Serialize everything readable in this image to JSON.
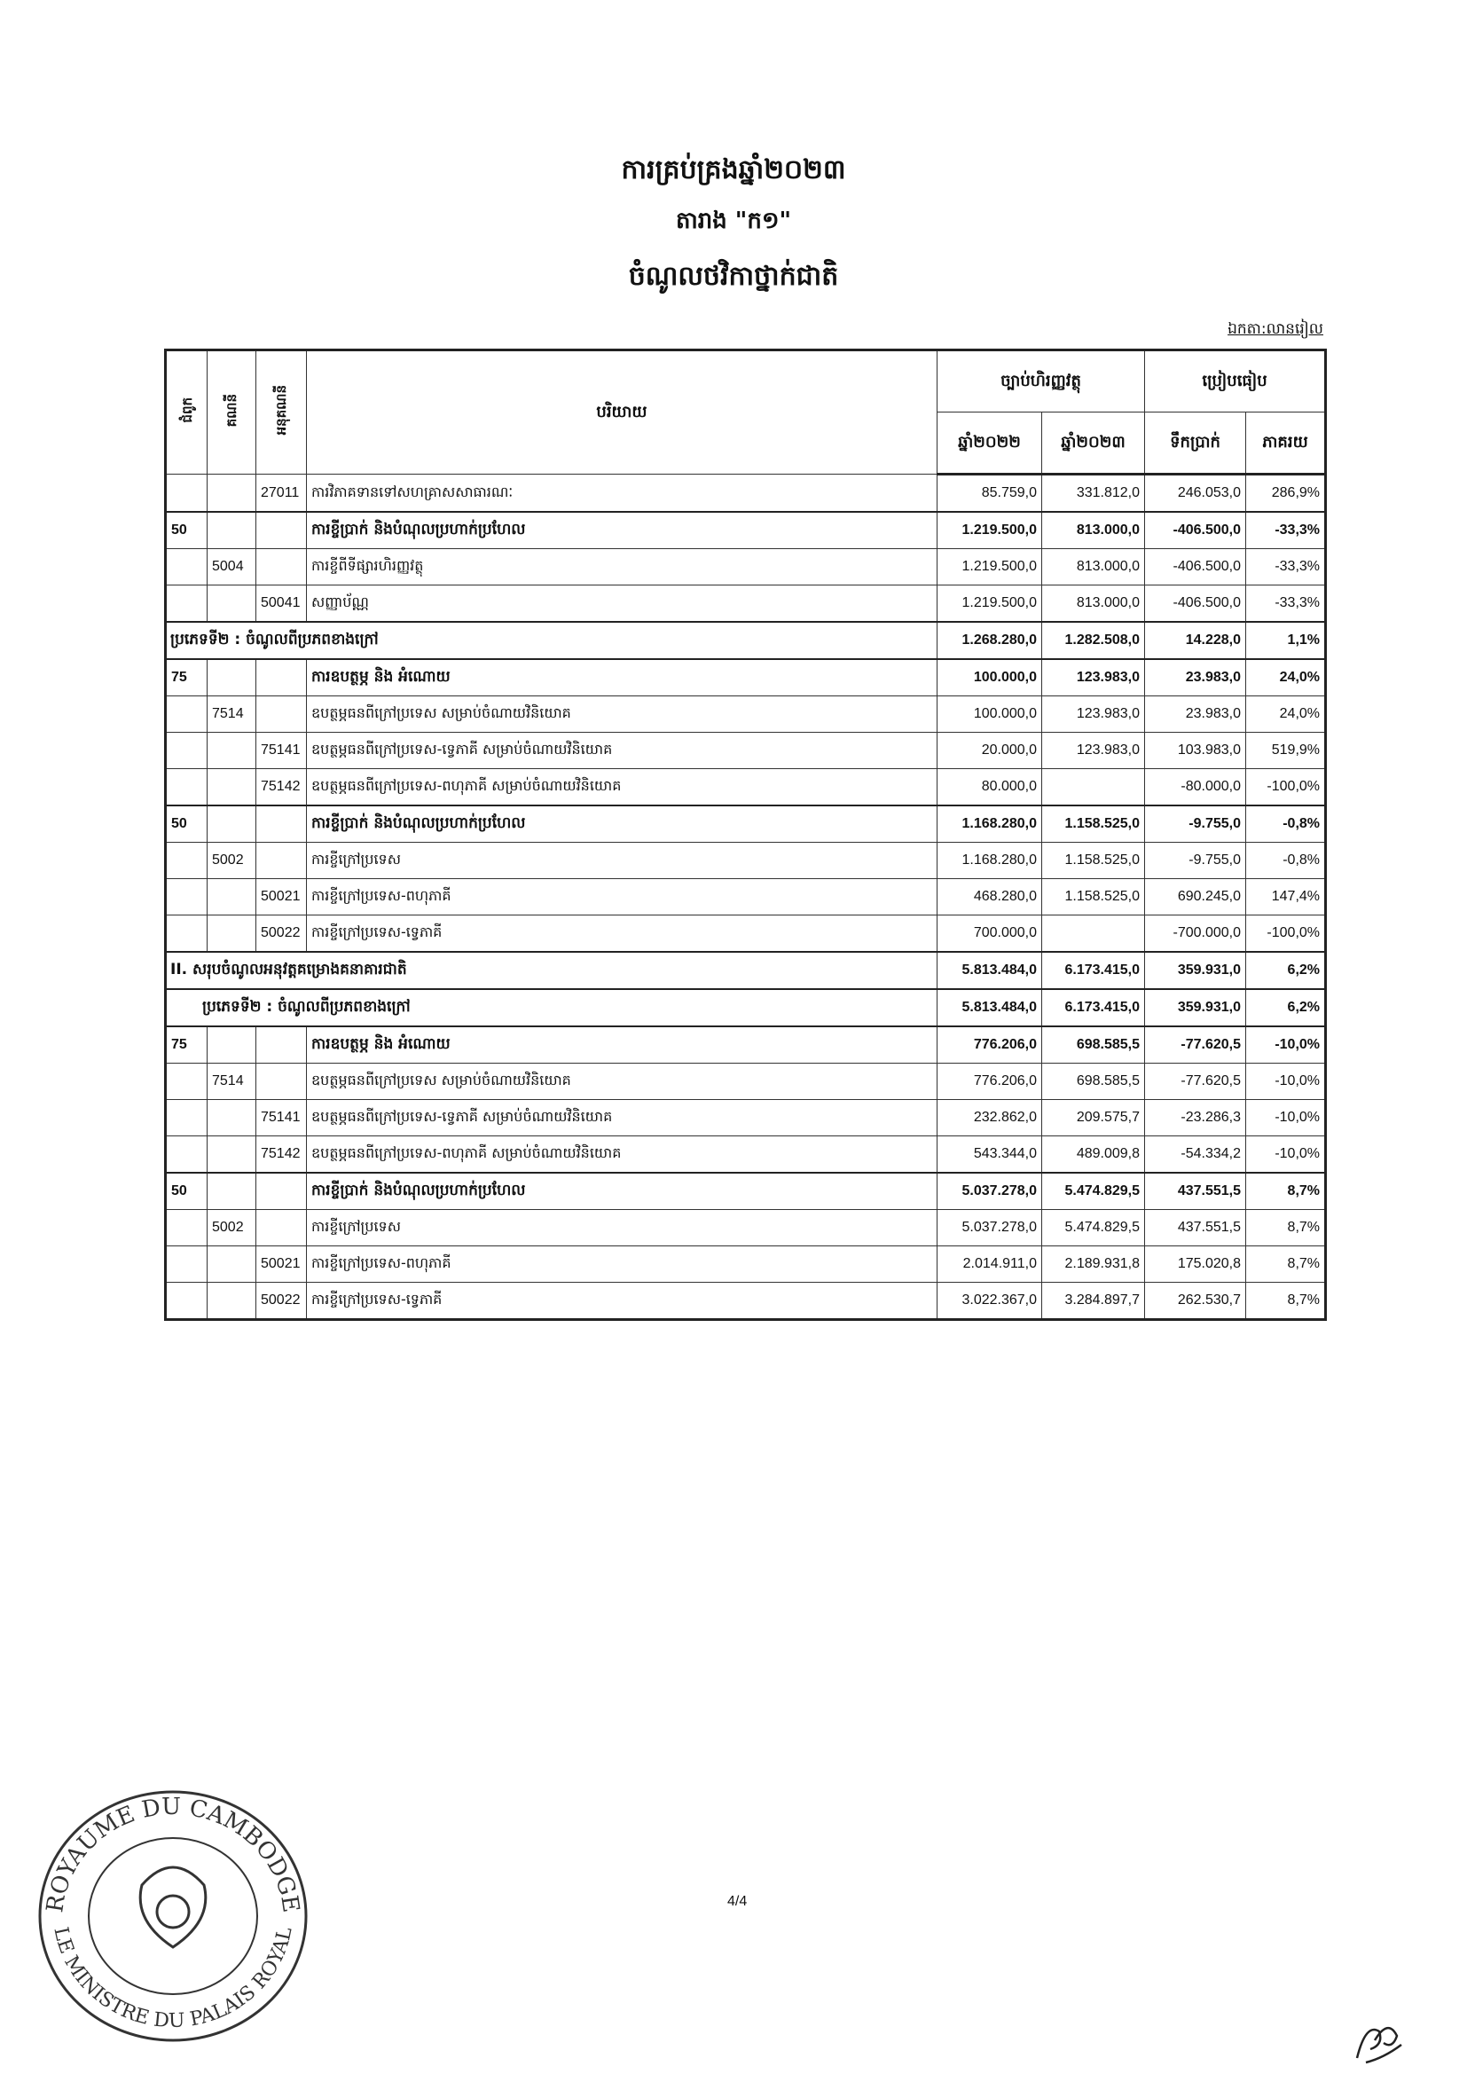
{
  "header": {
    "title1": "ការគ្រប់គ្រងឆ្នាំ២០២៣",
    "title2": "តារាង \"ក១\"",
    "title3": "ចំណូលថវិកាថ្នាក់ជាតិ",
    "unit": "ឯកតា:លានរៀល"
  },
  "table": {
    "col_chapter": "ជំពូក",
    "col_account": "គណនី",
    "col_subaccount": "អនុគណនី",
    "col_desc": "បរិយាយ",
    "group_law": "ច្បាប់ហិរញ្ញវត្ថុ",
    "group_compare": "ប្រៀបធៀប",
    "col_2022": "ឆ្នាំ២០២២",
    "col_2023": "ឆ្នាំ២០២៣",
    "col_amount": "ទឹកប្រាក់",
    "col_pct": "ភាគរយ",
    "rows": [
      {
        "type": "normal",
        "ch": "",
        "acc": "",
        "sub": "27011",
        "desc": "ការវិភាគទានទៅសហគ្រាសសាធារណៈ",
        "y2022": "85.759,0",
        "y2023": "331.812,0",
        "amt": "246.053,0",
        "pct": "286,9%"
      },
      {
        "type": "bold",
        "ch": "50",
        "acc": "",
        "sub": "",
        "desc": "ការខ្ចីប្រាក់ និងបំណុលប្រហាក់ប្រហែល",
        "y2022": "1.219.500,0",
        "y2023": "813.000,0",
        "amt": "-406.500,0",
        "pct": "-33,3%"
      },
      {
        "type": "normal",
        "ch": "",
        "acc": "5004",
        "sub": "",
        "desc": "ការខ្ចីពីទីផ្សារហិរញ្ញវត្ថុ",
        "y2022": "1.219.500,0",
        "y2023": "813.000,0",
        "amt": "-406.500,0",
        "pct": "-33,3%"
      },
      {
        "type": "normal",
        "ch": "",
        "acc": "",
        "sub": "50041",
        "desc": "សញ្ញាប័ណ្ណ",
        "y2022": "1.219.500,0",
        "y2023": "813.000,0",
        "amt": "-406.500,0",
        "pct": "-33,3%"
      },
      {
        "type": "section",
        "desc": "ប្រភេទទី២ : ចំណូលពីប្រភពខាងក្រៅ",
        "y2022": "1.268.280,0",
        "y2023": "1.282.508,0",
        "amt": "14.228,0",
        "pct": "1,1%"
      },
      {
        "type": "bold",
        "ch": "75",
        "acc": "",
        "sub": "",
        "desc": "ការឧបត្ថម្ភ និង អំណោយ",
        "y2022": "100.000,0",
        "y2023": "123.983,0",
        "amt": "23.983,0",
        "pct": "24,0%"
      },
      {
        "type": "normal",
        "ch": "",
        "acc": "7514",
        "sub": "",
        "desc": "ឧបត្ថម្ភធនពីក្រៅប្រទេស សម្រាប់ចំណាយវិនិយោគ",
        "y2022": "100.000,0",
        "y2023": "123.983,0",
        "amt": "23.983,0",
        "pct": "24,0%"
      },
      {
        "type": "normal",
        "ch": "",
        "acc": "",
        "sub": "75141",
        "desc": "ឧបត្ថម្ភធនពីក្រៅប្រទេស-ទ្វេភាគី សម្រាប់ចំណាយវិនិយោគ",
        "y2022": "20.000,0",
        "y2023": "123.983,0",
        "amt": "103.983,0",
        "pct": "519,9%"
      },
      {
        "type": "normal",
        "ch": "",
        "acc": "",
        "sub": "75142",
        "desc": "ឧបត្ថម្ភធនពីក្រៅប្រទេស-ពហុភាគី សម្រាប់ចំណាយវិនិយោគ",
        "y2022": "80.000,0",
        "y2023": "",
        "amt": "-80.000,0",
        "pct": "-100,0%"
      },
      {
        "type": "bold",
        "ch": "50",
        "acc": "",
        "sub": "",
        "desc": "ការខ្ចីប្រាក់ និងបំណុលប្រហាក់ប្រហែល",
        "y2022": "1.168.280,0",
        "y2023": "1.158.525,0",
        "amt": "-9.755,0",
        "pct": "-0,8%"
      },
      {
        "type": "normal",
        "ch": "",
        "acc": "5002",
        "sub": "",
        "desc": "ការខ្ចីក្រៅប្រទេស",
        "y2022": "1.168.280,0",
        "y2023": "1.158.525,0",
        "amt": "-9.755,0",
        "pct": "-0,8%"
      },
      {
        "type": "normal",
        "ch": "",
        "acc": "",
        "sub": "50021",
        "desc": "ការខ្ចីក្រៅប្រទេស-ពហុភាគី",
        "y2022": "468.280,0",
        "y2023": "1.158.525,0",
        "amt": "690.245,0",
        "pct": "147,4%"
      },
      {
        "type": "normal",
        "ch": "",
        "acc": "",
        "sub": "50022",
        "desc": "ការខ្ចីក្រៅប្រទេស-ទ្វេភាគី",
        "y2022": "700.000,0",
        "y2023": "",
        "amt": "-700.000,0",
        "pct": "-100,0%"
      },
      {
        "type": "section",
        "desc": "II. សរុបចំណូលអនុវត្តគម្រោងគនាគារជាតិ",
        "y2022": "5.813.484,0",
        "y2023": "6.173.415,0",
        "amt": "359.931,0",
        "pct": "6,2%"
      },
      {
        "type": "section",
        "desc": "ប្រភេទទី២ : ចំណូលពីប្រភពខាងក្រៅ",
        "indent": true,
        "y2022": "5.813.484,0",
        "y2023": "6.173.415,0",
        "amt": "359.931,0",
        "pct": "6,2%"
      },
      {
        "type": "bold",
        "ch": "75",
        "acc": "",
        "sub": "",
        "desc": "ការឧបត្ថម្ភ និង អំណោយ",
        "y2022": "776.206,0",
        "y2023": "698.585,5",
        "amt": "-77.620,5",
        "pct": "-10,0%"
      },
      {
        "type": "normal",
        "ch": "",
        "acc": "7514",
        "sub": "",
        "desc": "ឧបត្ថម្ភធនពីក្រៅប្រទេស សម្រាប់ចំណាយវិនិយោគ",
        "y2022": "776.206,0",
        "y2023": "698.585,5",
        "amt": "-77.620,5",
        "pct": "-10,0%"
      },
      {
        "type": "normal",
        "ch": "",
        "acc": "",
        "sub": "75141",
        "desc": "ឧបត្ថម្ភធនពីក្រៅប្រទេស-ទ្វេភាគី សម្រាប់ចំណាយវិនិយោគ",
        "y2022": "232.862,0",
        "y2023": "209.575,7",
        "amt": "-23.286,3",
        "pct": "-10,0%"
      },
      {
        "type": "normal",
        "ch": "",
        "acc": "",
        "sub": "75142",
        "desc": "ឧបត្ថម្ភធនពីក្រៅប្រទេស-ពហុភាគី សម្រាប់ចំណាយវិនិយោគ",
        "y2022": "543.344,0",
        "y2023": "489.009,8",
        "amt": "-54.334,2",
        "pct": "-10,0%"
      },
      {
        "type": "bold",
        "ch": "50",
        "acc": "",
        "sub": "",
        "desc": "ការខ្ចីប្រាក់ និងបំណុលប្រហាក់ប្រហែល",
        "y2022": "5.037.278,0",
        "y2023": "5.474.829,5",
        "amt": "437.551,5",
        "pct": "8,7%"
      },
      {
        "type": "normal",
        "ch": "",
        "acc": "5002",
        "sub": "",
        "desc": "ការខ្ចីក្រៅប្រទេស",
        "y2022": "5.037.278,0",
        "y2023": "5.474.829,5",
        "amt": "437.551,5",
        "pct": "8,7%"
      },
      {
        "type": "normal",
        "ch": "",
        "acc": "",
        "sub": "50021",
        "desc": "ការខ្ចីក្រៅប្រទេស-ពហុភាគី",
        "y2022": "2.014.911,0",
        "y2023": "2.189.931,8",
        "amt": "175.020,8",
        "pct": "8,7%"
      },
      {
        "type": "normal",
        "ch": "",
        "acc": "",
        "sub": "50022",
        "desc": "ការខ្ចីក្រៅប្រទេស-ទ្វេភាគី",
        "y2022": "3.022.367,0",
        "y2023": "3.284.897,7",
        "amt": "262.530,7",
        "pct": "8,7%"
      }
    ]
  },
  "footer": {
    "page": "4/4",
    "seal_text_top": "ROYAUME DU CAMBODGE",
    "seal_text_bottom": "LE MINISTRE DU PALAIS ROYAL",
    "seal_color": "#333333"
  }
}
